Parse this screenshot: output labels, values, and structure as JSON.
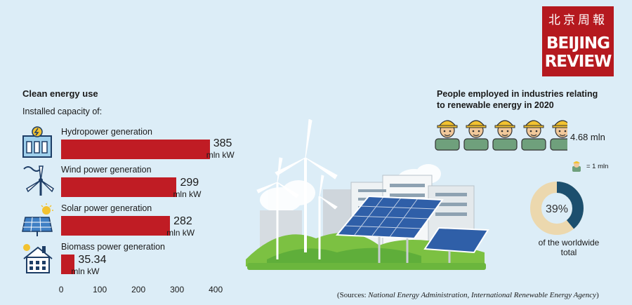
{
  "logo": {
    "chinese": "北京周報",
    "line1": "BEIJING",
    "line2": "REVIEW"
  },
  "colors": {
    "background": "#dcedf7",
    "bar": "#c01c24",
    "donut_fill": "#1c4f6e",
    "donut_rest": "#ecd8ae",
    "logo_bg": "#b5191f"
  },
  "chart_data": {
    "type": "bar",
    "orientation": "horizontal",
    "title": "Clean energy use",
    "subtitle": "Installed capacity of:",
    "categories": [
      "Hydropower generation",
      "Wind power generation",
      "Solar power generation",
      "Biomass power generation"
    ],
    "values": [
      385,
      299,
      282,
      35.34
    ],
    "value_labels": [
      "385",
      "299",
      "282",
      "35.34"
    ],
    "unit": "mln kW",
    "xlim": [
      0,
      400
    ],
    "xticks": [
      "0",
      "100",
      "200",
      "300",
      "400"
    ],
    "icons": [
      "hydropower-icon",
      "wind-turbine-icon",
      "solar-panel-icon",
      "biomass-house-icon"
    ]
  },
  "people": {
    "title_line1": "People employed in industries relating",
    "title_line2": "to renewable energy in 2020",
    "value": "4.68 mln",
    "icon_count": 4.68,
    "legend": "= 1 mln",
    "icon": "worker-icon"
  },
  "donut": {
    "percent_label": "39%",
    "fraction": 0.39,
    "label": "of the worldwide total"
  },
  "source": {
    "prefix": "(Sources: ",
    "agencies": "National Energy Administration, International Renewable Energy Agency",
    "suffix": ")"
  }
}
